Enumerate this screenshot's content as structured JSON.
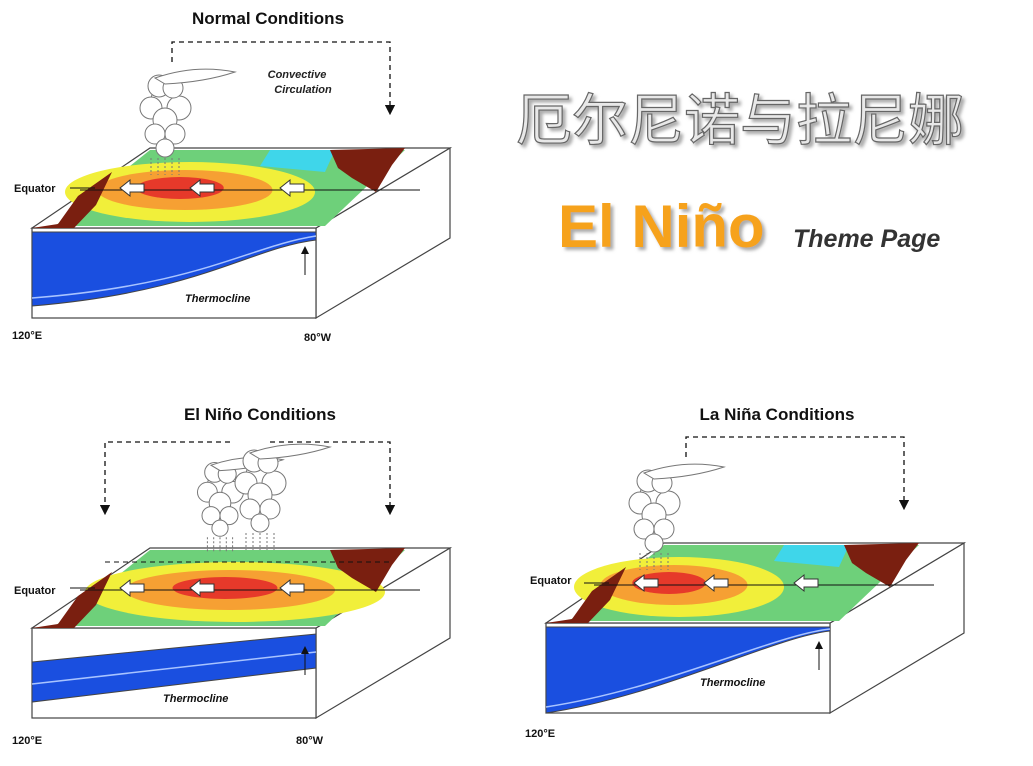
{
  "title": "厄尔尼诺与拉尼娜",
  "logo": {
    "name": "El Niño",
    "subtitle": "Theme Page"
  },
  "panels": [
    {
      "title": "Normal Conditions",
      "circulation_label": [
        "Convective",
        "Circulation"
      ],
      "equator_label": "Equator",
      "thermocline_label": "Thermocline",
      "west_label": "120°E",
      "east_label": "80°W"
    },
    {
      "title": "El Niño Conditions",
      "equator_label": "Equator",
      "thermocline_label": "Thermocline",
      "west_label": "120°E",
      "east_label": "80°W"
    },
    {
      "title": "La Niña Conditions",
      "equator_label": "Equator",
      "thermocline_label": "Thermocline",
      "west_label": "120°E"
    }
  ]
}
